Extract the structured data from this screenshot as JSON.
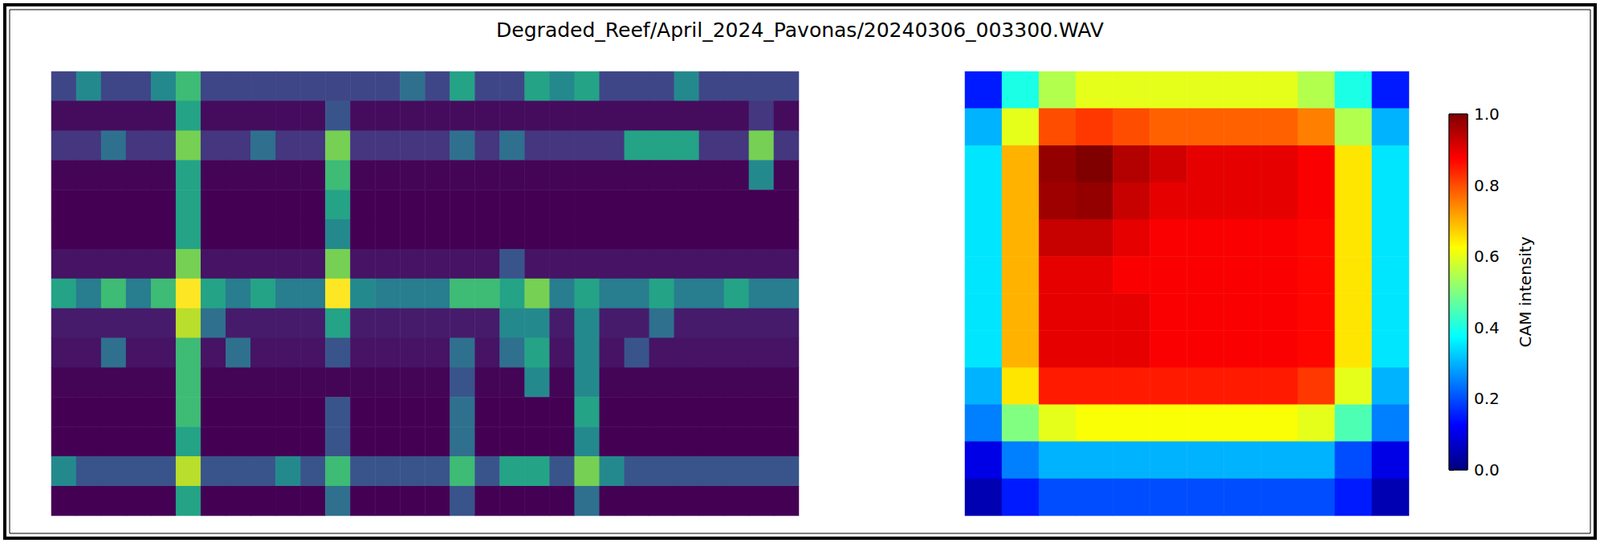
{
  "chart_data": [
    {
      "type": "heatmap",
      "title": "Degraded_Reef/April_2024_Pavonas/20240306_003300.WAV",
      "tick_labels": false,
      "cells": [
        [
          0.25,
          0.5,
          0.25,
          0.25,
          0.5,
          0.7,
          0.25,
          0.25,
          0.25,
          0.25,
          0.25,
          0.25,
          0.25,
          0.25,
          0.4,
          0.25,
          0.6,
          0.25,
          0.25,
          0.6,
          0.5,
          0.6,
          0.25,
          0.25,
          0.25,
          0.5,
          0.25,
          0.25,
          0.25,
          0.25
        ],
        [
          0.08,
          0.08,
          0.08,
          0.08,
          0.08,
          0.6,
          0.08,
          0.08,
          0.08,
          0.08,
          0.08,
          0.3,
          0.08,
          0.08,
          0.08,
          0.08,
          0.08,
          0.08,
          0.08,
          0.08,
          0.08,
          0.08,
          0.08,
          0.08,
          0.08,
          0.08,
          0.08,
          0.08,
          0.2,
          0.08
        ],
        [
          0.2,
          0.2,
          0.4,
          0.2,
          0.2,
          0.8,
          0.2,
          0.2,
          0.4,
          0.2,
          0.2,
          0.8,
          0.2,
          0.2,
          0.2,
          0.2,
          0.4,
          0.2,
          0.4,
          0.2,
          0.2,
          0.2,
          0.2,
          0.6,
          0.6,
          0.6,
          0.2,
          0.2,
          0.8,
          0.2
        ],
        [
          0.06,
          0.06,
          0.06,
          0.06,
          0.06,
          0.6,
          0.06,
          0.06,
          0.06,
          0.06,
          0.06,
          0.7,
          0.06,
          0.06,
          0.06,
          0.06,
          0.06,
          0.06,
          0.06,
          0.06,
          0.06,
          0.06,
          0.06,
          0.06,
          0.06,
          0.06,
          0.06,
          0.06,
          0.5,
          0.06
        ],
        [
          0.05,
          0.05,
          0.05,
          0.05,
          0.05,
          0.6,
          0.05,
          0.05,
          0.05,
          0.05,
          0.05,
          0.6,
          0.05,
          0.05,
          0.05,
          0.05,
          0.05,
          0.05,
          0.05,
          0.05,
          0.05,
          0.05,
          0.05,
          0.05,
          0.05,
          0.05,
          0.05,
          0.05,
          0.05,
          0.05
        ],
        [
          0.05,
          0.05,
          0.05,
          0.05,
          0.05,
          0.6,
          0.05,
          0.05,
          0.05,
          0.05,
          0.05,
          0.5,
          0.05,
          0.05,
          0.05,
          0.05,
          0.05,
          0.05,
          0.05,
          0.05,
          0.05,
          0.05,
          0.05,
          0.05,
          0.05,
          0.05,
          0.05,
          0.05,
          0.05,
          0.05
        ],
        [
          0.1,
          0.1,
          0.1,
          0.1,
          0.1,
          0.8,
          0.1,
          0.1,
          0.1,
          0.1,
          0.1,
          0.8,
          0.1,
          0.1,
          0.1,
          0.1,
          0.1,
          0.1,
          0.3,
          0.1,
          0.1,
          0.1,
          0.1,
          0.1,
          0.1,
          0.1,
          0.1,
          0.1,
          0.1,
          0.1
        ],
        [
          0.6,
          0.45,
          0.7,
          0.45,
          0.7,
          1.0,
          0.6,
          0.45,
          0.6,
          0.45,
          0.45,
          1.0,
          0.5,
          0.45,
          0.45,
          0.45,
          0.7,
          0.7,
          0.6,
          0.8,
          0.45,
          0.6,
          0.45,
          0.45,
          0.6,
          0.45,
          0.45,
          0.6,
          0.45,
          0.45
        ],
        [
          0.12,
          0.12,
          0.12,
          0.12,
          0.12,
          0.9,
          0.4,
          0.12,
          0.12,
          0.12,
          0.12,
          0.6,
          0.12,
          0.12,
          0.12,
          0.12,
          0.12,
          0.12,
          0.5,
          0.5,
          0.12,
          0.5,
          0.12,
          0.12,
          0.4,
          0.12,
          0.12,
          0.12,
          0.12,
          0.12
        ],
        [
          0.1,
          0.1,
          0.4,
          0.1,
          0.1,
          0.7,
          0.1,
          0.4,
          0.1,
          0.1,
          0.1,
          0.3,
          0.1,
          0.1,
          0.1,
          0.1,
          0.4,
          0.1,
          0.4,
          0.6,
          0.1,
          0.5,
          0.1,
          0.3,
          0.1,
          0.1,
          0.1,
          0.1,
          0.1,
          0.1
        ],
        [
          0.06,
          0.06,
          0.06,
          0.06,
          0.06,
          0.7,
          0.06,
          0.06,
          0.06,
          0.06,
          0.06,
          0.06,
          0.06,
          0.06,
          0.06,
          0.06,
          0.3,
          0.06,
          0.06,
          0.5,
          0.06,
          0.5,
          0.06,
          0.06,
          0.06,
          0.06,
          0.06,
          0.06,
          0.06,
          0.06
        ],
        [
          0.05,
          0.05,
          0.05,
          0.05,
          0.05,
          0.7,
          0.05,
          0.05,
          0.05,
          0.05,
          0.05,
          0.3,
          0.05,
          0.05,
          0.05,
          0.05,
          0.4,
          0.05,
          0.05,
          0.05,
          0.05,
          0.6,
          0.05,
          0.05,
          0.05,
          0.05,
          0.05,
          0.05,
          0.05,
          0.05
        ],
        [
          0.05,
          0.05,
          0.05,
          0.05,
          0.05,
          0.6,
          0.05,
          0.05,
          0.05,
          0.05,
          0.05,
          0.3,
          0.05,
          0.05,
          0.05,
          0.05,
          0.4,
          0.05,
          0.05,
          0.05,
          0.05,
          0.5,
          0.05,
          0.05,
          0.05,
          0.05,
          0.05,
          0.05,
          0.05,
          0.05
        ],
        [
          0.5,
          0.3,
          0.3,
          0.3,
          0.3,
          0.9,
          0.3,
          0.3,
          0.3,
          0.5,
          0.3,
          0.7,
          0.3,
          0.3,
          0.3,
          0.3,
          0.7,
          0.3,
          0.6,
          0.6,
          0.3,
          0.8,
          0.5,
          0.3,
          0.3,
          0.3,
          0.3,
          0.3,
          0.3,
          0.3
        ],
        [
          0.05,
          0.05,
          0.05,
          0.05,
          0.05,
          0.6,
          0.05,
          0.05,
          0.05,
          0.05,
          0.05,
          0.4,
          0.05,
          0.05,
          0.05,
          0.05,
          0.3,
          0.05,
          0.05,
          0.05,
          0.05,
          0.4,
          0.05,
          0.05,
          0.05,
          0.05,
          0.05,
          0.05,
          0.05,
          0.05
        ]
      ]
    },
    {
      "type": "heatmap",
      "tick_labels": false,
      "cells": [
        [
          0.15,
          0.4,
          0.55,
          0.6,
          0.6,
          0.6,
          0.6,
          0.6,
          0.6,
          0.55,
          0.4,
          0.15
        ],
        [
          0.3,
          0.6,
          0.8,
          0.82,
          0.8,
          0.78,
          0.78,
          0.78,
          0.78,
          0.75,
          0.55,
          0.3
        ],
        [
          0.35,
          0.7,
          0.98,
          1.0,
          0.95,
          0.92,
          0.9,
          0.9,
          0.9,
          0.88,
          0.65,
          0.35
        ],
        [
          0.35,
          0.7,
          0.97,
          0.98,
          0.93,
          0.9,
          0.9,
          0.9,
          0.9,
          0.88,
          0.65,
          0.35
        ],
        [
          0.35,
          0.7,
          0.93,
          0.93,
          0.9,
          0.88,
          0.88,
          0.88,
          0.88,
          0.87,
          0.65,
          0.35
        ],
        [
          0.35,
          0.7,
          0.9,
          0.9,
          0.88,
          0.88,
          0.88,
          0.88,
          0.88,
          0.87,
          0.65,
          0.35
        ],
        [
          0.35,
          0.7,
          0.9,
          0.9,
          0.9,
          0.88,
          0.88,
          0.88,
          0.88,
          0.87,
          0.65,
          0.35
        ],
        [
          0.35,
          0.7,
          0.9,
          0.9,
          0.9,
          0.88,
          0.88,
          0.88,
          0.88,
          0.87,
          0.65,
          0.35
        ],
        [
          0.3,
          0.65,
          0.85,
          0.85,
          0.85,
          0.85,
          0.85,
          0.85,
          0.85,
          0.82,
          0.6,
          0.3
        ],
        [
          0.25,
          0.5,
          0.6,
          0.62,
          0.62,
          0.62,
          0.62,
          0.62,
          0.62,
          0.6,
          0.45,
          0.25
        ],
        [
          0.1,
          0.25,
          0.3,
          0.3,
          0.3,
          0.3,
          0.3,
          0.3,
          0.3,
          0.3,
          0.2,
          0.1
        ],
        [
          0.05,
          0.15,
          0.2,
          0.2,
          0.2,
          0.2,
          0.2,
          0.2,
          0.2,
          0.2,
          0.15,
          0.05
        ]
      ],
      "colorbar": {
        "label": "CAM intensity",
        "range": [
          0,
          1
        ],
        "ticks": [
          {
            "value": 0,
            "label": "0.0"
          },
          {
            "value": 0.2,
            "label": "0.2"
          },
          {
            "value": 0.4,
            "label": "0.4"
          },
          {
            "value": 0.6,
            "label": "0.6"
          },
          {
            "value": 0.8,
            "label": "0.8"
          },
          {
            "value": 1,
            "label": "1.0"
          }
        ]
      }
    }
  ]
}
